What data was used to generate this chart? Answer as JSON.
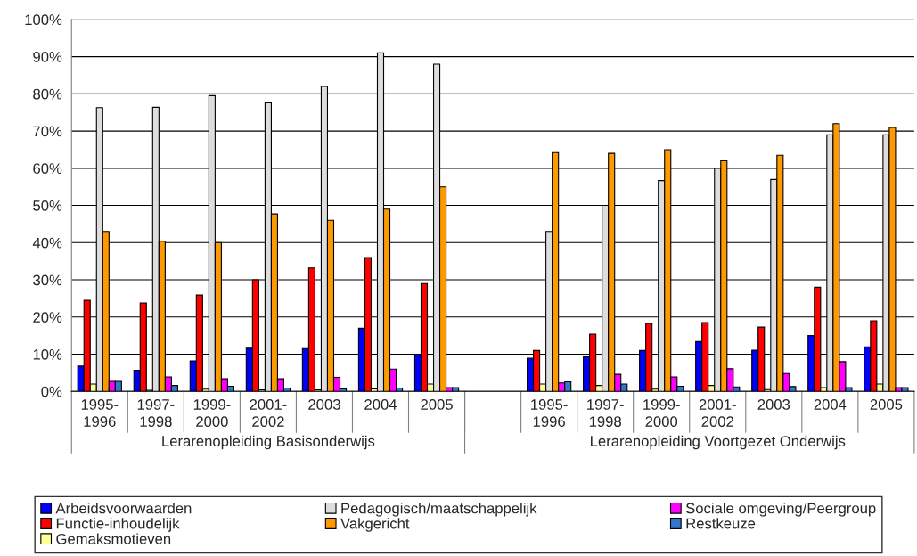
{
  "chart_data": {
    "type": "bar",
    "categories": [
      "1995-\n1996",
      "1997-\n1998",
      "1999-\n2000",
      "2001-\n2002",
      "2003",
      "2004",
      "2005",
      null,
      "1995-\n1996",
      "1997-\n1998",
      "1999-\n2000",
      "2001-\n2002",
      "2003",
      "2004",
      "2005"
    ],
    "series": [
      {
        "name": "Arbeidsvoorwaarden",
        "color": "#0000ff",
        "values": [
          6.8,
          5.7,
          8.2,
          11.6,
          11.5,
          17,
          10,
          null,
          8.9,
          9.3,
          11,
          13.4,
          11.1,
          15,
          12
        ]
      },
      {
        "name": "Functie-inhoudelijk",
        "color": "#ff0000",
        "values": [
          24.5,
          23.8,
          25.9,
          30,
          33.2,
          36,
          29,
          null,
          11,
          15.4,
          18.3,
          18.5,
          17.3,
          28,
          19
        ]
      },
      {
        "name": "Gemaksmotieven",
        "color": "#ffff99",
        "values": [
          2,
          0.3,
          0.6,
          0.4,
          0.4,
          0.7,
          2,
          null,
          2,
          1.6,
          0.6,
          1.6,
          0.5,
          1,
          2
        ]
      },
      {
        "name": "Pedagogisch/maatschappelijk",
        "color": "#dddddd",
        "values": [
          76.3,
          76.4,
          79.5,
          77.6,
          82,
          91,
          88,
          null,
          43,
          50,
          56.7,
          60,
          57,
          69,
          69
        ]
      },
      {
        "name": "Vakgericht",
        "color": "#ff9900",
        "values": [
          43,
          40.4,
          40,
          47.7,
          46,
          49,
          55,
          null,
          64.2,
          64,
          65,
          62,
          63.5,
          72,
          71
        ]
      },
      {
        "name": "Sociale omgeving/Peergroup",
        "color": "#ff00ff",
        "values": [
          2.7,
          3.9,
          3.4,
          3.4,
          3.8,
          6,
          1,
          null,
          2.3,
          4.6,
          3.9,
          6.1,
          4.8,
          8,
          1
        ]
      },
      {
        "name": "Restkeuze",
        "color": "#3377cc",
        "values": [
          2.7,
          1.6,
          1.4,
          0.9,
          0.7,
          0.9,
          1,
          null,
          2.6,
          2,
          1.4,
          1.2,
          1.3,
          1,
          1
        ]
      }
    ],
    "ylim": [
      0,
      100
    ],
    "yticks": [
      {
        "value": 0,
        "label": "0%"
      },
      {
        "value": 10,
        "label": "10%"
      },
      {
        "value": 20,
        "label": "20%"
      },
      {
        "value": 30,
        "label": "30%"
      },
      {
        "value": 40,
        "label": "40%"
      },
      {
        "value": 50,
        "label": "50%"
      },
      {
        "value": 60,
        "label": "60%"
      },
      {
        "value": 70,
        "label": "70%"
      },
      {
        "value": 80,
        "label": "80%"
      },
      {
        "value": 90,
        "label": "90%"
      },
      {
        "value": 100,
        "label": "100%"
      }
    ],
    "grid": "y",
    "legend": "bottom",
    "annotations": [
      "Lerarenopleiding Basisonderwijs",
      "Lerarenopleiding Voortgezet Onderwijs"
    ]
  }
}
